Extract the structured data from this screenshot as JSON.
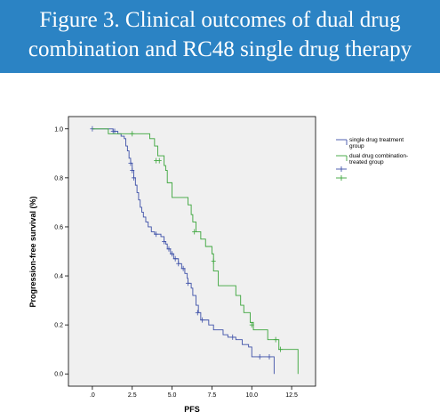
{
  "figure": {
    "title_line1": "Figure 3.  Clinical outcomes of  dual drug",
    "title_line2": "combination and RC48 single drug therapy"
  },
  "colors": {
    "banner": "#2b83c4",
    "plot_bg": "#f0f0f0",
    "single": "#3d50a8",
    "dual": "#3aa53a"
  },
  "chart_data": {
    "type": "line",
    "subtype": "kaplan-meier step",
    "xlabel": "PFS",
    "ylabel": "Progression-free survival (%)",
    "xlim": [
      -1.5,
      14.0
    ],
    "ylim": [
      -0.05,
      1.05
    ],
    "xticks": [
      0,
      2.5,
      5.0,
      7.5,
      10.0,
      12.5
    ],
    "xtick_labels": [
      ".0",
      "2.5",
      "5.0",
      "7.5",
      "10.0",
      "12.5"
    ],
    "yticks": [
      0.0,
      0.2,
      0.4,
      0.6,
      0.8,
      1.0
    ],
    "ytick_labels": [
      "0.0",
      "0.2",
      "0.4",
      "0.6",
      "0.8",
      "1.0"
    ],
    "grid": false,
    "legend_position": "right",
    "legend": [
      {
        "label": "single drug treatment group",
        "lines": [
          "single drug treatment",
          "group"
        ],
        "kind": "line",
        "series": 0
      },
      {
        "label": "dual drug combination-treated group",
        "lines": [
          "dual drug combination-",
          "treated group"
        ],
        "kind": "line",
        "series": 1
      },
      {
        "label": "",
        "lines": [],
        "kind": "censor",
        "series": 0
      },
      {
        "label": "",
        "lines": [],
        "kind": "censor",
        "series": 1
      }
    ],
    "series": [
      {
        "name": "single drug treatment group",
        "steps": [
          [
            0,
            1.0
          ],
          [
            1.3,
            0.99
          ],
          [
            1.6,
            0.98
          ],
          [
            1.8,
            0.97
          ],
          [
            2.0,
            0.96
          ],
          [
            2.1,
            0.93
          ],
          [
            2.2,
            0.91
          ],
          [
            2.3,
            0.88
          ],
          [
            2.4,
            0.86
          ],
          [
            2.5,
            0.83
          ],
          [
            2.6,
            0.8
          ],
          [
            2.7,
            0.77
          ],
          [
            2.8,
            0.74
          ],
          [
            2.9,
            0.71
          ],
          [
            3.0,
            0.68
          ],
          [
            3.1,
            0.66
          ],
          [
            3.2,
            0.64
          ],
          [
            3.35,
            0.62
          ],
          [
            3.5,
            0.6
          ],
          [
            3.7,
            0.58
          ],
          [
            3.9,
            0.57
          ],
          [
            4.3,
            0.56
          ],
          [
            4.5,
            0.54
          ],
          [
            4.6,
            0.53
          ],
          [
            4.7,
            0.51
          ],
          [
            4.9,
            0.49
          ],
          [
            5.1,
            0.47
          ],
          [
            5.4,
            0.45
          ],
          [
            5.6,
            0.43
          ],
          [
            5.8,
            0.41
          ],
          [
            5.95,
            0.39
          ],
          [
            6.0,
            0.37
          ],
          [
            6.2,
            0.35
          ],
          [
            6.3,
            0.32
          ],
          [
            6.5,
            0.28
          ],
          [
            6.65,
            0.25
          ],
          [
            6.8,
            0.22
          ],
          [
            7.3,
            0.2
          ],
          [
            7.6,
            0.18
          ],
          [
            8.2,
            0.16
          ],
          [
            8.5,
            0.15
          ],
          [
            9.0,
            0.14
          ],
          [
            9.4,
            0.12
          ],
          [
            9.8,
            0.11
          ],
          [
            10.0,
            0.07
          ],
          [
            11.4,
            0.0
          ]
        ],
        "end_x": 11.4,
        "censored": [
          [
            0,
            1.0
          ],
          [
            1.3,
            0.99
          ],
          [
            1.4,
            0.99
          ],
          [
            2.4,
            0.86
          ],
          [
            2.5,
            0.83
          ],
          [
            2.6,
            0.8
          ],
          [
            4.0,
            0.57
          ],
          [
            4.5,
            0.54
          ],
          [
            4.8,
            0.51
          ],
          [
            5.0,
            0.49
          ],
          [
            5.2,
            0.47
          ],
          [
            5.4,
            0.45
          ],
          [
            5.7,
            0.43
          ],
          [
            6.0,
            0.37
          ],
          [
            6.6,
            0.25
          ],
          [
            6.9,
            0.22
          ],
          [
            8.8,
            0.15
          ],
          [
            10.5,
            0.07
          ],
          [
            11.1,
            0.07
          ]
        ]
      },
      {
        "name": "dual drug combination-treated group",
        "steps": [
          [
            0,
            1.0
          ],
          [
            1.0,
            0.98
          ],
          [
            3.6,
            0.96
          ],
          [
            3.9,
            0.93
          ],
          [
            4.1,
            0.89
          ],
          [
            4.5,
            0.85
          ],
          [
            4.6,
            0.83
          ],
          [
            4.7,
            0.78
          ],
          [
            5.0,
            0.72
          ],
          [
            6.0,
            0.69
          ],
          [
            6.2,
            0.65
          ],
          [
            6.3,
            0.62
          ],
          [
            6.5,
            0.58
          ],
          [
            6.8,
            0.55
          ],
          [
            7.1,
            0.52
          ],
          [
            7.5,
            0.49
          ],
          [
            7.6,
            0.42
          ],
          [
            7.9,
            0.36
          ],
          [
            9.0,
            0.32
          ],
          [
            9.3,
            0.28
          ],
          [
            9.5,
            0.25
          ],
          [
            9.9,
            0.21
          ],
          [
            10.1,
            0.18
          ],
          [
            11.0,
            0.14
          ],
          [
            11.7,
            0.1
          ],
          [
            12.9,
            0.0
          ]
        ],
        "end_x": 12.9,
        "censored": [
          [
            2.5,
            0.98
          ],
          [
            4.0,
            0.87
          ],
          [
            4.2,
            0.87
          ],
          [
            6.4,
            0.58
          ],
          [
            7.6,
            0.46
          ],
          [
            10.0,
            0.2
          ],
          [
            11.5,
            0.14
          ],
          [
            11.8,
            0.1
          ]
        ]
      }
    ]
  }
}
